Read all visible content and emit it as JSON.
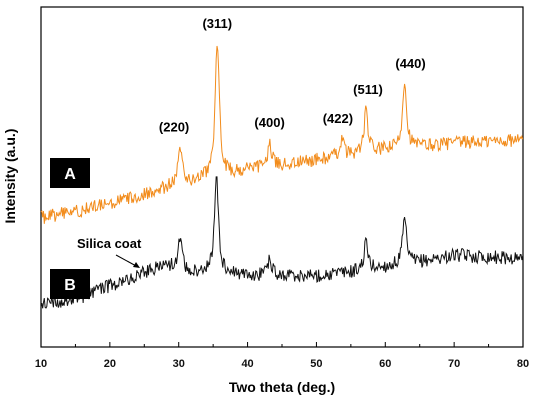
{
  "chart_data": {
    "type": "line",
    "xlabel": "Two theta (deg.)",
    "ylabel": "Intensity (a.u.)",
    "xlim": [
      10,
      80
    ],
    "ylim": [
      0,
      100
    ],
    "x_ticks": [
      "10",
      "20",
      "30",
      "40",
      "50",
      "60",
      "70",
      "80"
    ],
    "grid": false,
    "legend": "none",
    "series": [
      {
        "name": "A",
        "color": "#f28c1c",
        "baseline": [
          [
            10,
            38
          ],
          [
            20,
            42
          ],
          [
            30,
            48
          ],
          [
            40,
            52
          ],
          [
            50,
            55
          ],
          [
            60,
            58
          ],
          [
            70,
            60
          ],
          [
            80,
            61
          ]
        ],
        "noise": 2.0,
        "peaks": [
          {
            "x": 30.2,
            "height": 10,
            "label": "(220)"
          },
          {
            "x": 35.6,
            "height": 40,
            "label": "(311)"
          },
          {
            "x": 43.2,
            "height": 7,
            "label": "(400)"
          },
          {
            "x": 53.7,
            "height": 5,
            "label": "(422)"
          },
          {
            "x": 57.2,
            "height": 12,
            "label": "(511)"
          },
          {
            "x": 62.8,
            "height": 20,
            "label": "(440)"
          }
        ]
      },
      {
        "name": "B",
        "color": "#111111",
        "baseline": [
          [
            10,
            13
          ],
          [
            15,
            14
          ],
          [
            20,
            18
          ],
          [
            25,
            22
          ],
          [
            28,
            24
          ],
          [
            32,
            22
          ],
          [
            40,
            21
          ],
          [
            50,
            21
          ],
          [
            55,
            22
          ],
          [
            65,
            25
          ],
          [
            70,
            27
          ],
          [
            80,
            26
          ]
        ],
        "noise": 2.0,
        "peaks": [
          {
            "x": 30.2,
            "height": 9
          },
          {
            "x": 35.5,
            "height": 28
          },
          {
            "x": 43.2,
            "height": 5
          },
          {
            "x": 57.2,
            "height": 8
          },
          {
            "x": 62.8,
            "height": 13
          }
        ]
      }
    ],
    "annotations": [
      {
        "text": "Silica coat",
        "arrow": true
      }
    ]
  }
}
